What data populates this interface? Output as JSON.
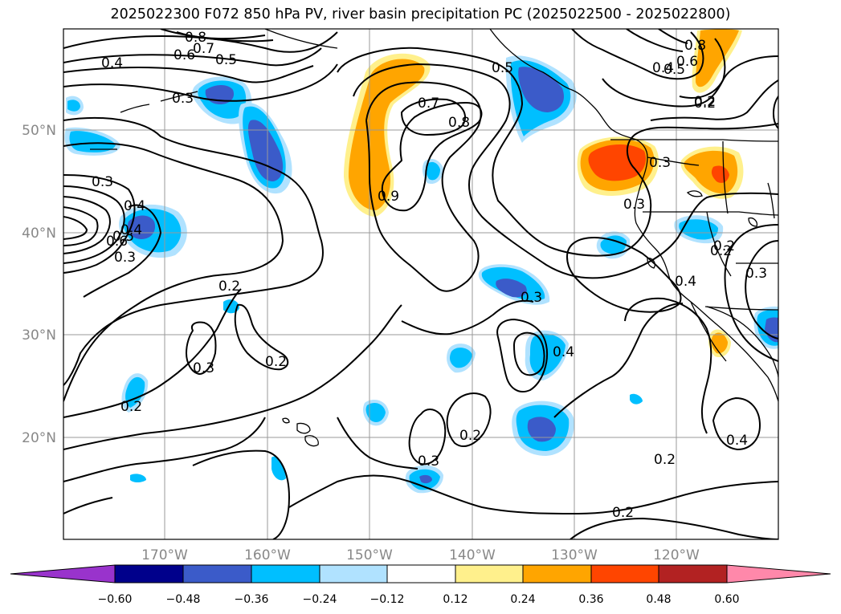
{
  "title": "2025022300 F072 850 hPa PV, river basin precipitation PC (2025022500 - 2025022800)",
  "colors": {
    "land": "#000000",
    "contour": "#000000",
    "grid": "#999999",
    "frame": "#000000"
  },
  "axes": {
    "lon_ticks": [
      "170°W",
      "160°W",
      "150°W",
      "140°W",
      "130°W",
      "120°W"
    ],
    "lat_ticks": [
      "50°N",
      "40°N",
      "30°N",
      "20°N"
    ]
  },
  "colorbar": {
    "colors": [
      "#9933cc",
      "#00008b",
      "#3b5bc9",
      "#00bfff",
      "#b0e2ff",
      "#ffffff",
      "#fff08c",
      "#ffa500",
      "#ff4500",
      "#b22222",
      "#ff88aa"
    ],
    "tick_labels": [
      "−0.60",
      "−0.48",
      "−0.36",
      "−0.24",
      "−0.12",
      "0.12",
      "0.24",
      "0.36",
      "0.48",
      "0.60"
    ]
  },
  "contour_labels": [
    "0.8",
    "0.7",
    "0.6",
    "0.5",
    "0.4",
    "0.3",
    "0.3",
    "0.5",
    "0.7",
    "0.8",
    "0.9",
    "0.8",
    "0.6",
    "0.5",
    "0.4",
    "0.3",
    "0.2",
    "0.4",
    "0.3",
    "0.4",
    "0.5",
    "0.6",
    "0.2",
    "0.3",
    "0.2",
    "0.2",
    "0.3",
    "0.3",
    "0.2",
    "0.3",
    "0.4",
    "0.4",
    "0.3",
    "0.2",
    "0.2",
    "0.2",
    "0.4",
    "0.2",
    "0.2"
  ]
}
